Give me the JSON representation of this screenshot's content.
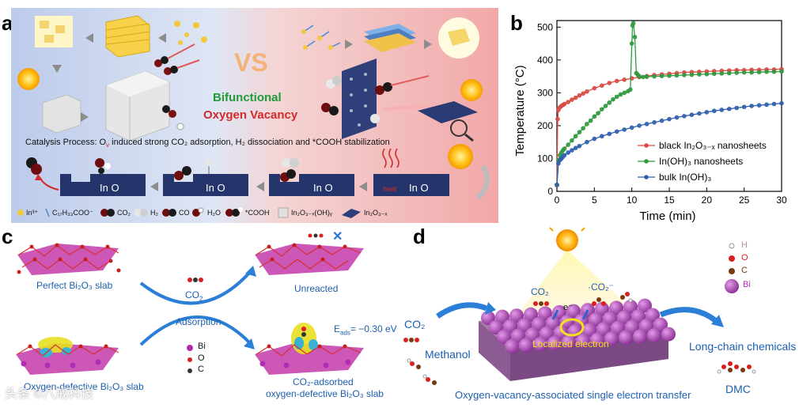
{
  "panels": {
    "a": "a",
    "b": "b",
    "c": "c",
    "d": "d"
  },
  "panel_a": {
    "vs": "VS",
    "center_line1": "Bifunctional",
    "center_line2": "Oxygen Vacancy",
    "catalysis_text": "Catalysis Process: O",
    "catalysis_sub": "v",
    "catalysis_rest": " induced strong CO₂ adsorption, H₂ dissociation and *COOH stabilization",
    "heat": "heat",
    "slab_label": "In  O",
    "legend": [
      "In³⁺",
      "C₁₇H₃₃COO⁻",
      "CO₂",
      "H₂",
      "CO",
      "H₂O",
      "*COOH",
      "In₂O₃₋ₓ(OH)ᵧ",
      "In₂O₃₋ₓ"
    ],
    "colors": {
      "left_bg": "#c9d6ef",
      "right_bg": "#f3b9b9",
      "slab": "#25356b",
      "green": "#1f9b3a",
      "red": "#d22a2a",
      "vs_orange": "#f2b27a"
    }
  },
  "chart_data": {
    "type": "line",
    "xlabel": "Time (min)",
    "ylabel": "Temperature (°C)",
    "xlim": [
      0,
      30
    ],
    "ylim": [
      0,
      520
    ],
    "xticks": [
      0,
      5,
      10,
      15,
      20,
      25,
      30
    ],
    "yticks": [
      0,
      100,
      200,
      300,
      400,
      500
    ],
    "legend_position": "right",
    "series": [
      {
        "name": "black In₂O₃₋ₓ nanosheets",
        "color": "#d94b44",
        "x": [
          0,
          0.1,
          0.2,
          0.4,
          0.6,
          0.8,
          1,
          1.5,
          2,
          2.5,
          3,
          3.5,
          4,
          5,
          6,
          7,
          8,
          9,
          10,
          11,
          12,
          13,
          14,
          15,
          16,
          17,
          18,
          19,
          20,
          21,
          22,
          23,
          24,
          25,
          26,
          27,
          28,
          29,
          30
        ],
        "y": [
          18,
          220,
          248,
          256,
          260,
          263,
          266,
          272,
          279,
          285,
          292,
          298,
          304,
          314,
          322,
          330,
          336,
          340,
          344,
          348,
          351,
          354,
          356,
          358,
          360,
          362,
          363,
          364,
          365,
          366,
          367,
          368,
          369,
          369,
          370,
          370,
          371,
          371,
          372
        ]
      },
      {
        "name": "In(OH)₃ nanosheets",
        "color": "#2f9a3e",
        "x": [
          0,
          0.2,
          0.4,
          0.6,
          0.8,
          1,
          1.5,
          2,
          2.5,
          3,
          3.5,
          4,
          4.5,
          5,
          5.5,
          6,
          6.5,
          7,
          7.5,
          8,
          8.5,
          9,
          9.5,
          9.8,
          10,
          10.1,
          10.2,
          10.4,
          10.6,
          10.8,
          11,
          11.5,
          12,
          13,
          14,
          15,
          16,
          17,
          18,
          19,
          20,
          21,
          22,
          23,
          24,
          25,
          26,
          27,
          28,
          29,
          30
        ],
        "y": [
          20,
          95,
          110,
          118,
          125,
          130,
          142,
          155,
          168,
          180,
          192,
          205,
          215,
          228,
          238,
          250,
          260,
          270,
          280,
          288,
          295,
          300,
          305,
          310,
          450,
          505,
          512,
          470,
          360,
          355,
          350,
          348,
          349,
          350,
          351,
          352,
          353,
          354,
          355,
          356,
          357,
          358,
          359,
          360,
          361,
          362,
          362,
          363,
          364,
          364,
          365
        ]
      },
      {
        "name": "bulk In(OH)₃",
        "color": "#2e5fae",
        "x": [
          0,
          0.2,
          0.4,
          0.6,
          0.8,
          1,
          1.5,
          2,
          2.5,
          3,
          4,
          5,
          6,
          7,
          8,
          9,
          10,
          11,
          12,
          13,
          14,
          15,
          16,
          17,
          18,
          19,
          20,
          21,
          22,
          23,
          24,
          25,
          26,
          27,
          28,
          29,
          30
        ],
        "y": [
          20,
          85,
          95,
          100,
          105,
          110,
          118,
          125,
          132,
          138,
          150,
          160,
          168,
          175,
          182,
          188,
          194,
          200,
          205,
          210,
          215,
          220,
          225,
          229,
          233,
          237,
          241,
          245,
          248,
          251,
          254,
          257,
          260,
          262,
          264,
          266,
          268
        ]
      }
    ]
  },
  "panel_c": {
    "perfect": "Perfect Bi₂O₃ slab",
    "unreacted": "Unreacted",
    "co2": "CO",
    "co2_sub": "2",
    "adsorption": "Adsorption",
    "defective": "Oxygen-defective Bi₂O₃ slab",
    "adsorbed_1": "CO₂-adsorbed",
    "adsorbed_2": "oxygen-defective Bi₂O₃ slab",
    "eads": "E",
    "eads_sub": "ads",
    "eads_val": "= −0.30 eV",
    "legend": [
      "Bi",
      "O",
      "C"
    ],
    "cross": "✕"
  },
  "panel_d": {
    "co2_left": "CO₂",
    "methanol": "Methanol",
    "co2_top": "CO₂",
    "co2_radical": "·CO₂⁻",
    "electron": "e⁻",
    "localized": "Localized electron",
    "long_chain": "Long-chain chemicals",
    "dmc": "DMC",
    "caption": "Oxygen-vacancy-associated single electron transfer",
    "legend": [
      "H",
      "O",
      "C",
      "Bi"
    ]
  },
  "watermark": "头条 ©八戒科技"
}
